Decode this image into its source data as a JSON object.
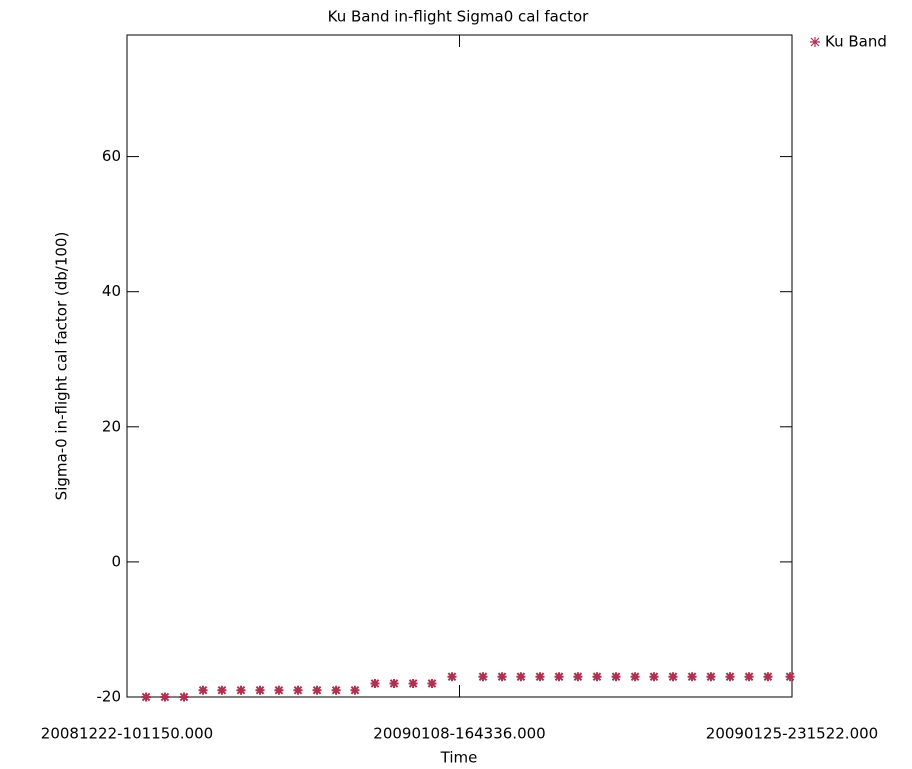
{
  "chart_data": {
    "type": "scatter",
    "title": "Ku Band in-flight Sigma0 cal factor",
    "x_label": "Time",
    "y_label": "Sigma-0 in-flight cal factor (db/100)",
    "xlim": [
      0,
      34.54
    ],
    "xticks": [
      {
        "value": 0,
        "label": "20081222-101150.000"
      },
      {
        "value": 17.27,
        "label": "20090108-164336.000"
      },
      {
        "value": 34.54,
        "label": "20090125-231522.000"
      }
    ],
    "ylim": [
      -20,
      78
    ],
    "yticks": [
      -20,
      0,
      20,
      40,
      60
    ],
    "legend": "top-right",
    "series": [
      {
        "name": "Ku Band",
        "color": "#b0304f",
        "x": [
          0.99,
          1.97,
          2.96,
          3.95,
          4.93,
          5.92,
          6.91,
          7.89,
          8.88,
          9.87,
          10.86,
          11.84,
          12.88,
          13.87,
          14.86,
          15.84,
          16.88,
          18.49,
          19.48,
          20.46,
          21.45,
          22.44,
          23.42,
          24.41,
          25.4,
          26.39,
          27.37,
          28.36,
          29.35,
          30.33,
          31.32,
          32.31,
          33.29,
          34.44
        ],
        "values": [
          -20,
          -20,
          -20,
          -19,
          -19,
          -19,
          -19,
          -19,
          -19,
          -19,
          -19,
          -19,
          -18,
          -18,
          -18,
          -18,
          -17,
          -17,
          -17,
          -17,
          -17,
          -17,
          -17,
          -17,
          -17,
          -17,
          -17,
          -17,
          -17,
          -17,
          -17,
          -17,
          -17,
          -17
        ]
      }
    ]
  }
}
